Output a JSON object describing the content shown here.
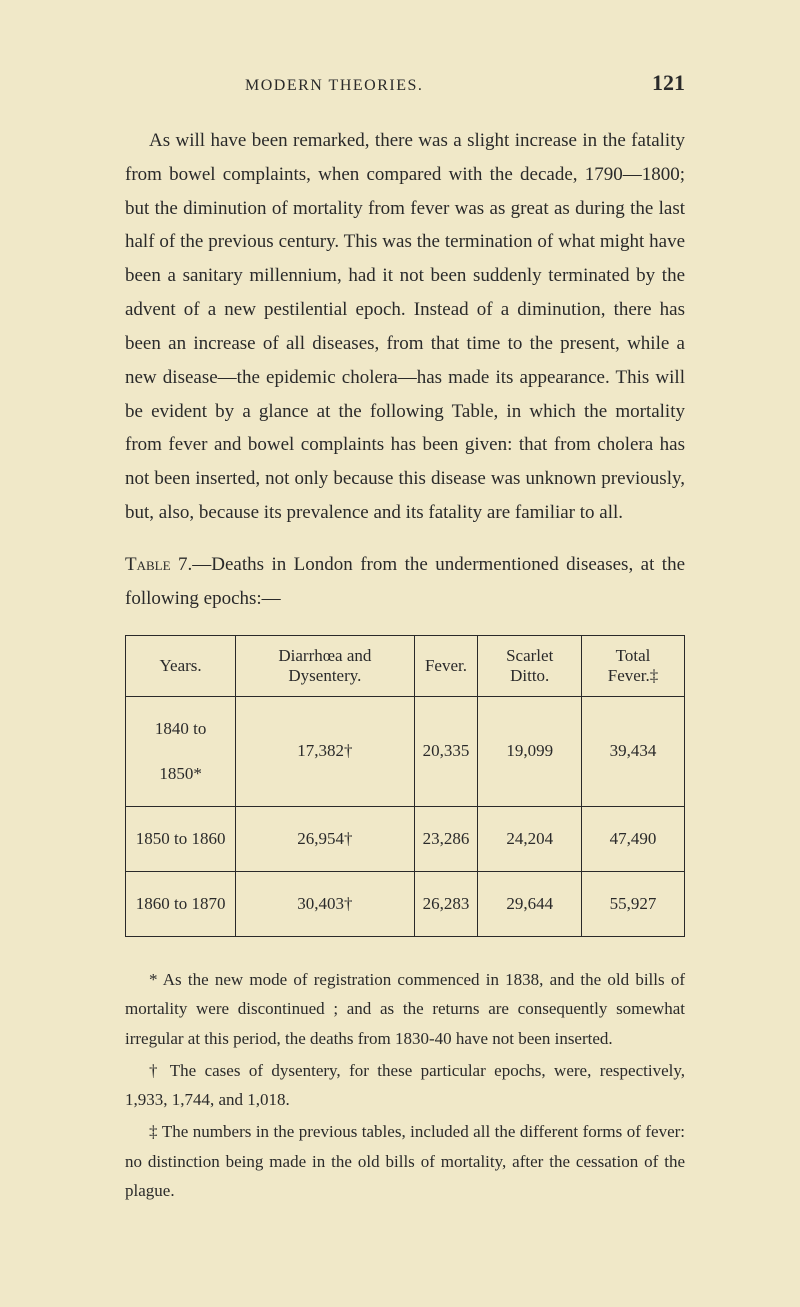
{
  "header": {
    "title": "MODERN THEORIES.",
    "page": "121"
  },
  "paragraph1": "As will have been remarked, there was a slight increase in the fatality from bowel complaints, when compared with the decade, 1790—1800; but the diminution of mortality from fever was as great as during the last half of the previous century. This was the termination of what might have been a sanitary millennium, had it not been suddenly terminated by the advent of a new pestilential epoch. Instead of a diminution, there has been an increase of all diseases, from that time to the present, while a new disease—the epidemic cholera—has made its appearance. This will be evident by a glance at the following Table, in which the mortality from fever and bowel complaints has been given: that from cholera has not been inserted, not only because this disease was unknown previously, but, also, because its prevalence and its fatality are familiar to all.",
  "tableCaption": {
    "label": "Table 7.",
    "text": "—Deaths in London from the undermentioned diseases, at the following epochs:—"
  },
  "table": {
    "headers": [
      "Years.",
      "Diarrhœa and Dysentery.",
      "Fever.",
      "Scarlet Ditto.",
      "Total Fever.‡"
    ],
    "rows": [
      [
        "1840 to 1850*",
        "17,382†",
        "20,335",
        "19,099",
        "39,434"
      ],
      [
        "1850 to 1860",
        "26,954†",
        "23,286",
        "24,204",
        "47,490"
      ],
      [
        "1860 to 1870",
        "30,403†",
        "26,283",
        "29,644",
        "55,927"
      ]
    ]
  },
  "footnotes": {
    "note1": "* As the new mode of registration commenced in 1838, and the old bills of mortality were discontinued ; and as the returns are consequently somewhat irregular at this period, the deaths from 1830-40 have not been inserted.",
    "note2": "† The cases of dysentery, for these particular epochs, were, respectively, 1,933, 1,744, and 1,018.",
    "note3": "‡ The numbers in the previous tables, included all the different forms of fever: no distinction being made in the old bills of mortality, after the cessation of the plague."
  }
}
